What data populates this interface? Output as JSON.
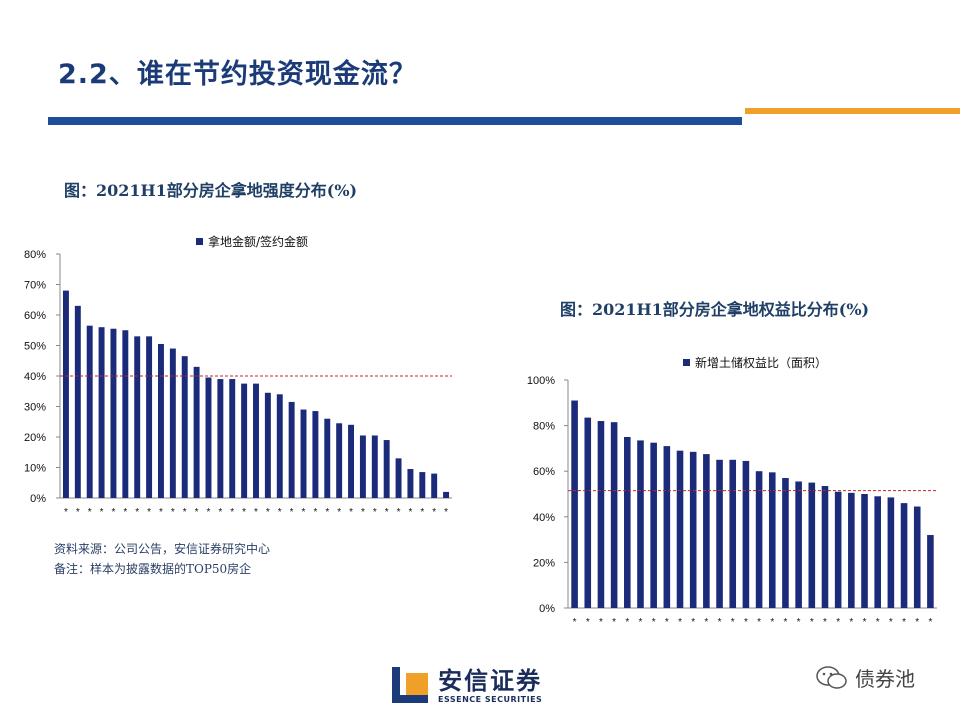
{
  "page": {
    "title": "2.2、谁在节约投资现金流？",
    "note_source": "资料来源：公司公告，安信证券研究中心",
    "note_remark": "备注：样本为披露数据的TOP50房企"
  },
  "colors": {
    "bar": "#1c2a7a",
    "refline": "#c0272d",
    "title": "#1a3b78"
  },
  "branding": {
    "logo_cn": "安信证券",
    "logo_en": "ESSENCE SECURITIES",
    "watermark": "债券池"
  },
  "chart_data": [
    {
      "type": "bar",
      "title": "图：2021H1部分房企拿地强度分布(%)",
      "legend": "拿地金额/签约金额",
      "category_label": "*",
      "ylim": [
        0,
        80
      ],
      "yticks": [
        0,
        10,
        20,
        30,
        40,
        50,
        60,
        70,
        80
      ],
      "tick_labels": [
        "0%",
        "10%",
        "20%",
        "30%",
        "40%",
        "50%",
        "60%",
        "70%",
        "80%"
      ],
      "reference_line": 40,
      "values": [
        68,
        63,
        56.5,
        56,
        55.5,
        55,
        53,
        53,
        50.5,
        49,
        46.5,
        43,
        39.5,
        39,
        39,
        37.5,
        37.5,
        34.5,
        34,
        31.5,
        29,
        28.5,
        26,
        24.5,
        24,
        20.5,
        20.5,
        19,
        13,
        9.5,
        8.5,
        8,
        2
      ]
    },
    {
      "type": "bar",
      "title": "图：2021H1部分房企拿地权益比分布(%)",
      "legend": "新增土储权益比（面积）",
      "category_label": "*",
      "ylim": [
        0,
        100
      ],
      "yticks": [
        0,
        20,
        40,
        60,
        80,
        100
      ],
      "tick_labels": [
        "0%",
        "20%",
        "40%",
        "60%",
        "80%",
        "100%"
      ],
      "reference_line": 51.5,
      "values": [
        91,
        83.5,
        82,
        81.5,
        75,
        73.5,
        72.5,
        71,
        69,
        68.5,
        67.5,
        65,
        65,
        64.5,
        60,
        59.5,
        57,
        55.5,
        55,
        53.5,
        51,
        50.5,
        50,
        49,
        48.5,
        46,
        44.5,
        32
      ]
    }
  ]
}
